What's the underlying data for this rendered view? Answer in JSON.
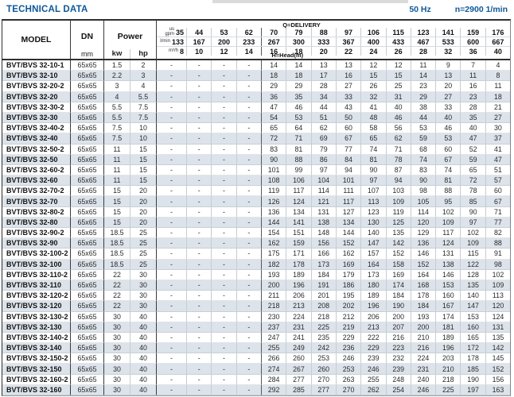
{
  "page": {
    "title": "TECHNICAL DATA",
    "frequency": "50 Hz",
    "speed": "n=2900 1/min"
  },
  "table": {
    "header": {
      "model": "MODEL",
      "dn": "DN",
      "dn_unit": "mm",
      "power": "Power",
      "power_unit_kw": "kw",
      "power_unit_hp": "hp",
      "delivery_label": "Q=DELIVERY",
      "head_label": "H=Head(m)",
      "unit_rows": [
        {
          "unit": "us\ngpm",
          "values": [
            "35",
            "44",
            "53",
            "62",
            "70",
            "79",
            "88",
            "97",
            "106",
            "115",
            "123",
            "141",
            "159",
            "176"
          ]
        },
        {
          "unit": "l/min",
          "values": [
            "133",
            "167",
            "200",
            "233",
            "267",
            "300",
            "333",
            "367",
            "400",
            "433",
            "467",
            "533",
            "600",
            "667"
          ]
        },
        {
          "unit": "m³/h",
          "values": [
            "8",
            "10",
            "12",
            "14",
            "16",
            "18",
            "20",
            "22",
            "24",
            "26",
            "28",
            "32",
            "36",
            "40"
          ]
        }
      ]
    },
    "rows": [
      {
        "model": "BVT/BVS 32-10-1",
        "dn": "65x65",
        "kw": "1.5",
        "hp": "2",
        "heads": [
          "-",
          "-",
          "-",
          "-",
          "14",
          "14",
          "13",
          "13",
          "12",
          "12",
          "11",
          "9",
          "7",
          "4"
        ]
      },
      {
        "model": "BVT/BVS 32-10",
        "dn": "65x65",
        "kw": "2.2",
        "hp": "3",
        "heads": [
          "-",
          "-",
          "-",
          "-",
          "18",
          "18",
          "17",
          "16",
          "15",
          "15",
          "14",
          "13",
          "11",
          "8"
        ]
      },
      {
        "model": "BVT/BVS 32-20-2",
        "dn": "65x65",
        "kw": "3",
        "hp": "4",
        "heads": [
          "-",
          "-",
          "-",
          "-",
          "29",
          "29",
          "28",
          "27",
          "26",
          "25",
          "23",
          "20",
          "16",
          "11"
        ]
      },
      {
        "model": "BVT/BVS 32-20",
        "dn": "65x65",
        "kw": "4",
        "hp": "5.5",
        "heads": [
          "-",
          "-",
          "-",
          "-",
          "36",
          "35",
          "34",
          "33",
          "32",
          "31",
          "29",
          "27",
          "23",
          "18"
        ]
      },
      {
        "model": "BVT/BVS 32-30-2",
        "dn": "65x65",
        "kw": "5.5",
        "hp": "7.5",
        "heads": [
          "-",
          "-",
          "-",
          "-",
          "47",
          "46",
          "44",
          "43",
          "41",
          "40",
          "38",
          "33",
          "28",
          "21"
        ]
      },
      {
        "model": "BVT/BVS 32-30",
        "dn": "65x65",
        "kw": "5.5",
        "hp": "7.5",
        "heads": [
          "-",
          "-",
          "-",
          "-",
          "54",
          "53",
          "51",
          "50",
          "48",
          "46",
          "44",
          "40",
          "35",
          "27"
        ]
      },
      {
        "model": "BVT/BVS 32-40-2",
        "dn": "65x65",
        "kw": "7.5",
        "hp": "10",
        "heads": [
          "-",
          "-",
          "-",
          "-",
          "65",
          "64",
          "62",
          "60",
          "58",
          "56",
          "53",
          "46",
          "40",
          "30"
        ]
      },
      {
        "model": "BVT/BVS 32-40",
        "dn": "65x65",
        "kw": "7.5",
        "hp": "10",
        "heads": [
          "-",
          "-",
          "-",
          "-",
          "72",
          "71",
          "69",
          "67",
          "65",
          "62",
          "59",
          "53",
          "47",
          "37"
        ]
      },
      {
        "model": "BVT/BVS 32-50-2",
        "dn": "65x65",
        "kw": "11",
        "hp": "15",
        "heads": [
          "-",
          "-",
          "-",
          "-",
          "83",
          "81",
          "79",
          "77",
          "74",
          "71",
          "68",
          "60",
          "52",
          "41"
        ]
      },
      {
        "model": "BVT/BVS 32-50",
        "dn": "65x65",
        "kw": "11",
        "hp": "15",
        "heads": [
          "-",
          "-",
          "-",
          "-",
          "90",
          "88",
          "86",
          "84",
          "81",
          "78",
          "74",
          "67",
          "59",
          "47"
        ]
      },
      {
        "model": "BVT/BVS 32-60-2",
        "dn": "65x65",
        "kw": "11",
        "hp": "15",
        "heads": [
          "-",
          "-",
          "-",
          "-",
          "101",
          "99",
          "97",
          "94",
          "90",
          "87",
          "83",
          "74",
          "65",
          "51"
        ]
      },
      {
        "model": "BVT/BVS 32-60",
        "dn": "65x65",
        "kw": "11",
        "hp": "15",
        "heads": [
          "-",
          "-",
          "-",
          "-",
          "108",
          "106",
          "104",
          "101",
          "97",
          "94",
          "90",
          "81",
          "72",
          "57"
        ]
      },
      {
        "model": "BVT/BVS 32-70-2",
        "dn": "65x65",
        "kw": "15",
        "hp": "20",
        "heads": [
          "-",
          "-",
          "-",
          "-",
          "119",
          "117",
          "114",
          "111",
          "107",
          "103",
          "98",
          "88",
          "78",
          "60"
        ]
      },
      {
        "model": "BVT/BVS 32-70",
        "dn": "65x65",
        "kw": "15",
        "hp": "20",
        "heads": [
          "-",
          "-",
          "-",
          "-",
          "126",
          "124",
          "121",
          "117",
          "113",
          "109",
          "105",
          "95",
          "85",
          "67"
        ]
      },
      {
        "model": "BVT/BVS 32-80-2",
        "dn": "65x65",
        "kw": "15",
        "hp": "20",
        "heads": [
          "-",
          "-",
          "-",
          "-",
          "136",
          "134",
          "131",
          "127",
          "123",
          "119",
          "114",
          "102",
          "90",
          "71"
        ]
      },
      {
        "model": "BVT/BVS 32-80",
        "dn": "65x65",
        "kw": "15",
        "hp": "20",
        "heads": [
          "-",
          "-",
          "-",
          "-",
          "144",
          "141",
          "138",
          "134",
          "130",
          "125",
          "120",
          "109",
          "97",
          "77"
        ]
      },
      {
        "model": "BVT/BVS 32-90-2",
        "dn": "65x65",
        "kw": "18.5",
        "hp": "25",
        "heads": [
          "-",
          "-",
          "-",
          "-",
          "154",
          "151",
          "148",
          "144",
          "140",
          "135",
          "129",
          "117",
          "102",
          "82"
        ]
      },
      {
        "model": "BVT/BVS 32-90",
        "dn": "65x65",
        "kw": "18.5",
        "hp": "25",
        "heads": [
          "-",
          "-",
          "-",
          "-",
          "162",
          "159",
          "156",
          "152",
          "147",
          "142",
          "136",
          "124",
          "109",
          "88"
        ]
      },
      {
        "model": "BVT/BVS 32-100-2",
        "dn": "65x65",
        "kw": "18.5",
        "hp": "25",
        "heads": [
          "-",
          "-",
          "-",
          "-",
          "175",
          "171",
          "166",
          "162",
          "157",
          "152",
          "146",
          "131",
          "115",
          "91"
        ]
      },
      {
        "model": "BVT/BVS 32-100",
        "dn": "65x65",
        "kw": "18.5",
        "hp": "25",
        "heads": [
          "-",
          "-",
          "-",
          "-",
          "182",
          "178",
          "173",
          "169",
          "164",
          "158",
          "152",
          "138",
          "122",
          "98"
        ]
      },
      {
        "model": "BVT/BVS 32-110-2",
        "dn": "65x65",
        "kw": "22",
        "hp": "30",
        "heads": [
          "-",
          "-",
          "-",
          "-",
          "193",
          "189",
          "184",
          "179",
          "173",
          "169",
          "164",
          "146",
          "128",
          "102"
        ]
      },
      {
        "model": "BVT/BVS 32-110",
        "dn": "65x65",
        "kw": "22",
        "hp": "30",
        "heads": [
          "-",
          "-",
          "-",
          "-",
          "200",
          "196",
          "191",
          "186",
          "180",
          "174",
          "168",
          "153",
          "135",
          "109"
        ]
      },
      {
        "model": "BVT/BVS 32-120-2",
        "dn": "65x65",
        "kw": "22",
        "hp": "30",
        "heads": [
          "-",
          "-",
          "-",
          "-",
          "211",
          "206",
          "201",
          "195",
          "189",
          "184",
          "178",
          "160",
          "140",
          "113"
        ]
      },
      {
        "model": "BVT/BVS 32-120",
        "dn": "65x65",
        "kw": "22",
        "hp": "30",
        "heads": [
          "-",
          "-",
          "-",
          "-",
          "218",
          "213",
          "208",
          "202",
          "196",
          "190",
          "184",
          "167",
          "147",
          "120"
        ]
      },
      {
        "model": "BVT/BVS 32-130-2",
        "dn": "65x65",
        "kw": "30",
        "hp": "40",
        "heads": [
          "-",
          "-",
          "-",
          "-",
          "230",
          "224",
          "218",
          "212",
          "206",
          "200",
          "193",
          "174",
          "153",
          "124"
        ]
      },
      {
        "model": "BVT/BVS 32-130",
        "dn": "65x65",
        "kw": "30",
        "hp": "40",
        "heads": [
          "-",
          "-",
          "-",
          "-",
          "237",
          "231",
          "225",
          "219",
          "213",
          "207",
          "200",
          "181",
          "160",
          "131"
        ]
      },
      {
        "model": "BVT/BVS 32-140-2",
        "dn": "65x65",
        "kw": "30",
        "hp": "40",
        "heads": [
          "-",
          "-",
          "-",
          "-",
          "247",
          "241",
          "235",
          "229",
          "222",
          "216",
          "210",
          "189",
          "165",
          "135"
        ]
      },
      {
        "model": "BVT/BVS 32-140",
        "dn": "65x65",
        "kw": "30",
        "hp": "40",
        "heads": [
          "-",
          "-",
          "-",
          "-",
          "255",
          "249",
          "242",
          "236",
          "229",
          "223",
          "216",
          "196",
          "172",
          "142"
        ]
      },
      {
        "model": "BVT/BVS 32-150-2",
        "dn": "65x65",
        "kw": "30",
        "hp": "40",
        "heads": [
          "-",
          "-",
          "-",
          "-",
          "266",
          "260",
          "253",
          "246",
          "239",
          "232",
          "224",
          "203",
          "178",
          "145"
        ]
      },
      {
        "model": "BVT/BVS 32-150",
        "dn": "65x65",
        "kw": "30",
        "hp": "40",
        "heads": [
          "-",
          "-",
          "-",
          "-",
          "274",
          "267",
          "260",
          "253",
          "246",
          "239",
          "231",
          "210",
          "185",
          "152"
        ]
      },
      {
        "model": "BVT/BVS 32-160-2",
        "dn": "65x65",
        "kw": "30",
        "hp": "40",
        "heads": [
          "-",
          "-",
          "-",
          "-",
          "284",
          "277",
          "270",
          "263",
          "255",
          "248",
          "240",
          "218",
          "190",
          "156"
        ]
      },
      {
        "model": "BVT/BVS 32-160",
        "dn": "65x65",
        "kw": "30",
        "hp": "40",
        "heads": [
          "-",
          "-",
          "-",
          "-",
          "292",
          "285",
          "277",
          "270",
          "262",
          "254",
          "246",
          "225",
          "197",
          "163"
        ]
      }
    ]
  }
}
